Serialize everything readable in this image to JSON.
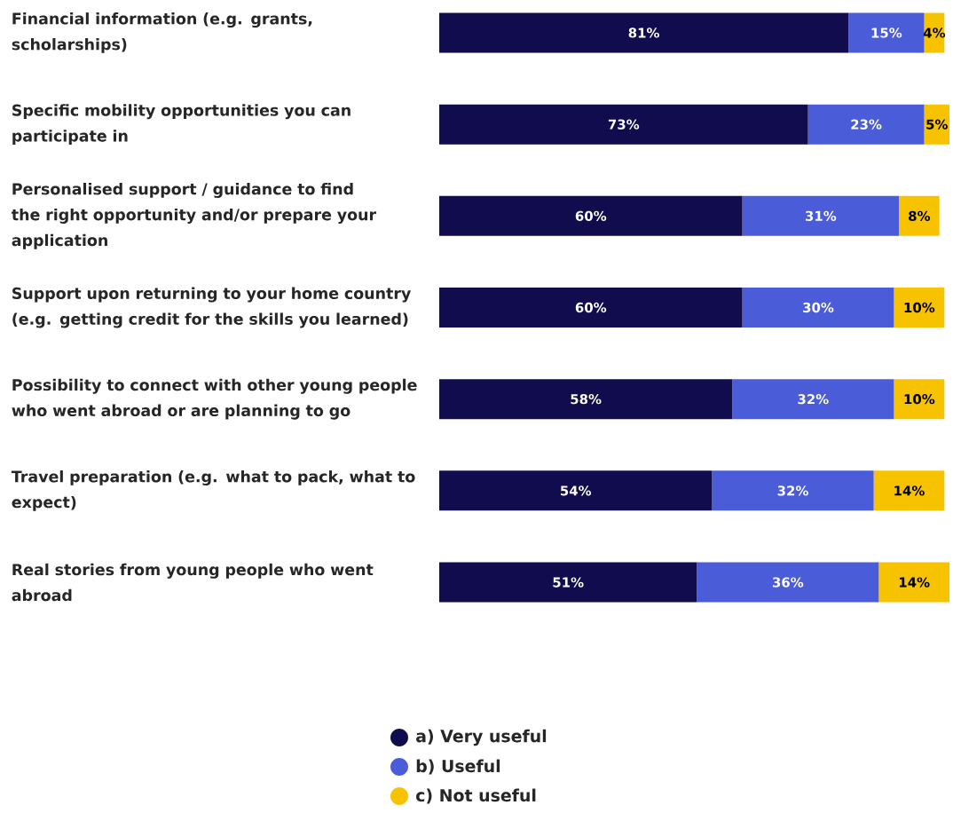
{
  "chart_data": {
    "type": "bar",
    "orientation": "horizontal",
    "stacked": true,
    "legend": "bottom",
    "categories": [
      "Financial information (e.g. grants, scholarships)",
      "Specific mobility opportunities you can participate in",
      "Personalised support / guidance to find the right opportunity and/or prepare your application",
      "Support upon returning to your home country (e.g. getting credit for the skills you learned)",
      "Possibility to connect with other young people who went abroad or are planning to go",
      "Travel preparation (e.g. what to pack, what to expect)",
      "Real stories from young people who went abroad"
    ],
    "series": [
      {
        "name": "a) Very useful",
        "color": "#100c4e",
        "values": [
          81,
          73,
          60,
          60,
          58,
          54,
          51
        ],
        "value_labels": [
          "81%",
          "73%",
          "60%",
          "60%",
          "58%",
          "54%",
          "51%"
        ]
      },
      {
        "name": "b) Useful",
        "color": "#4a5cd8",
        "values": [
          15,
          23,
          31,
          30,
          32,
          32,
          36
        ],
        "value_labels": [
          "15%",
          "23%",
          "31%",
          "30%",
          "32%",
          "32%",
          "36%"
        ]
      },
      {
        "name": "c) Not useful",
        "color": "#f7c300",
        "values": [
          4,
          5,
          8,
          10,
          10,
          14,
          14
        ],
        "value_labels": [
          "4%",
          "5%",
          "8%",
          "10%",
          "10%",
          "14%",
          "14%"
        ]
      }
    ]
  }
}
